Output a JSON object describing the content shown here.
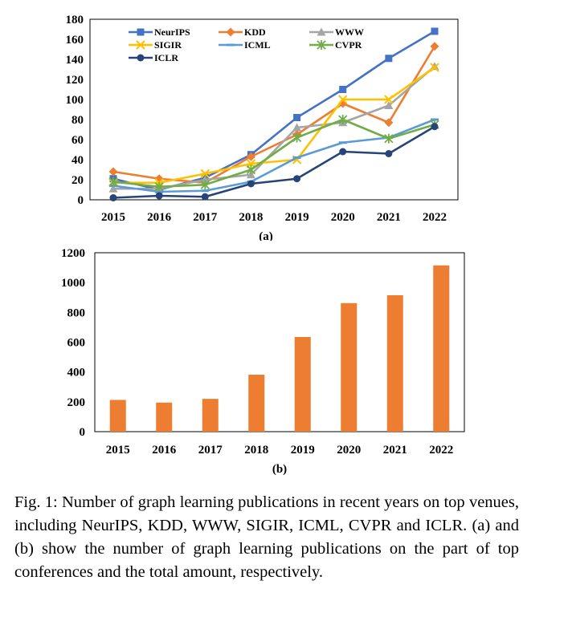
{
  "chart_data": [
    {
      "type": "line",
      "subtitle": "(a)",
      "x": [
        "2015",
        "2016",
        "2017",
        "2018",
        "2019",
        "2020",
        "2021",
        "2022"
      ],
      "ylim": [
        0,
        180
      ],
      "yticks": [
        0,
        20,
        40,
        60,
        80,
        100,
        120,
        140,
        160,
        180
      ],
      "grid": false,
      "legend_position": "top-left inside",
      "series": [
        {
          "name": "NeurIPS",
          "color": "#4472C4",
          "marker": "square",
          "values": [
            21,
            10,
            22,
            45,
            82,
            110,
            141,
            168
          ]
        },
        {
          "name": "KDD",
          "color": "#ED7D31",
          "marker": "diamond",
          "values": [
            28,
            21,
            17,
            43,
            65,
            96,
            77,
            153
          ]
        },
        {
          "name": "WWW",
          "color": "#A5A5A5",
          "marker": "triangle",
          "values": [
            11,
            11,
            20,
            25,
            72,
            77,
            94,
            133
          ]
        },
        {
          "name": "SIGIR",
          "color": "#FFC000",
          "marker": "x",
          "values": [
            17,
            17,
            26,
            36,
            40,
            100,
            100,
            132
          ]
        },
        {
          "name": "ICML",
          "color": "#5B9BD5",
          "marker": "dash",
          "values": [
            14,
            8,
            9,
            18,
            42,
            57,
            62,
            80
          ]
        },
        {
          "name": "CVPR",
          "color": "#70AD47",
          "marker": "star",
          "values": [
            18,
            13,
            15,
            30,
            62,
            80,
            61,
            75
          ]
        },
        {
          "name": "ICLR",
          "color": "#264478",
          "marker": "circle",
          "values": [
            2,
            4,
            3,
            16,
            21,
            48,
            46,
            73
          ]
        }
      ]
    },
    {
      "type": "bar",
      "subtitle": "(b)",
      "categories": [
        "2015",
        "2016",
        "2017",
        "2018",
        "2019",
        "2020",
        "2021",
        "2022"
      ],
      "values": [
        213,
        195,
        220,
        382,
        635,
        862,
        915,
        1115
      ],
      "ylim": [
        0,
        1200
      ],
      "yticks": [
        0,
        200,
        400,
        600,
        800,
        1000,
        1200
      ],
      "color": "#ED7D31",
      "grid": false
    }
  ],
  "caption": "Fig. 1: Number of graph learning publications in recent years on top venues, including NeurIPS, KDD, WWW, SIGIR, ICML, CVPR and ICLR. (a) and (b) show the number of graph learning publications on the part of top conferences and the total amount, respectively."
}
